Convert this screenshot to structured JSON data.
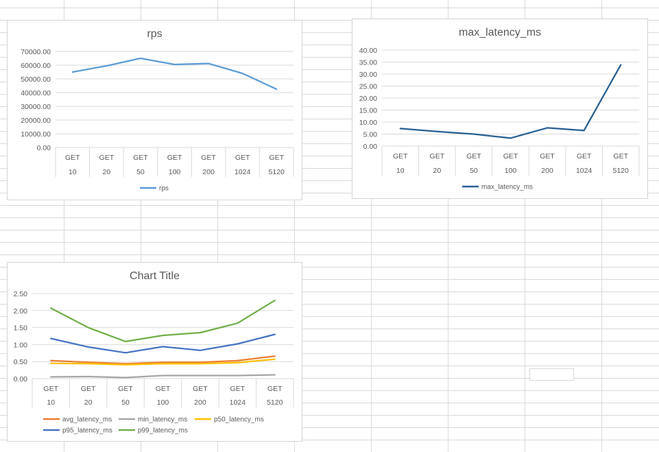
{
  "chart_data": [
    {
      "type": "line",
      "title": "rps",
      "categories": [
        [
          "GET",
          "10"
        ],
        [
          "GET",
          "20"
        ],
        [
          "GET",
          "50"
        ],
        [
          "GET",
          "100"
        ],
        [
          "GET",
          "200"
        ],
        [
          "GET",
          "1024"
        ],
        [
          "GET",
          "5120"
        ]
      ],
      "series": [
        {
          "name": "rps",
          "color": "#5b9bd5",
          "values": [
            55000,
            59500,
            65000,
            60500,
            61200,
            54000,
            42500
          ]
        }
      ],
      "ylim": [
        0,
        70000
      ],
      "yticks": [
        0,
        10000,
        20000,
        30000,
        40000,
        50000,
        60000,
        70000
      ],
      "ytick_labels": [
        "0.00",
        "10000.00",
        "20000.00",
        "30000.00",
        "40000.00",
        "50000.00",
        "60000.00",
        "70000.00"
      ],
      "grid": true,
      "legend": "bottom"
    },
    {
      "type": "line",
      "title": "max_latency_ms",
      "categories": [
        [
          "GET",
          "10"
        ],
        [
          "GET",
          "20"
        ],
        [
          "GET",
          "50"
        ],
        [
          "GET",
          "100"
        ],
        [
          "GET",
          "200"
        ],
        [
          "GET",
          "1024"
        ],
        [
          "GET",
          "5120"
        ]
      ],
      "series": [
        {
          "name": "max_latency_ms",
          "color": "#255e91",
          "values": [
            7.3,
            6.1,
            5.0,
            3.3,
            7.6,
            6.5,
            33.8
          ]
        }
      ],
      "ylim": [
        0,
        40
      ],
      "yticks": [
        0,
        5,
        10,
        15,
        20,
        25,
        30,
        35,
        40
      ],
      "ytick_labels": [
        "0.00",
        "5.00",
        "10.00",
        "15.00",
        "20.00",
        "25.00",
        "30.00",
        "35.00",
        "40.00"
      ],
      "grid": true,
      "legend": "bottom"
    },
    {
      "type": "line",
      "title": "Chart Title",
      "categories": [
        [
          "GET",
          "10"
        ],
        [
          "GET",
          "20"
        ],
        [
          "GET",
          "50"
        ],
        [
          "GET",
          "100"
        ],
        [
          "GET",
          "200"
        ],
        [
          "GET",
          "1024"
        ],
        [
          "GET",
          "5120"
        ]
      ],
      "series": [
        {
          "name": "avg_latency_ms",
          "color": "#ed7d31",
          "values": [
            0.53,
            0.48,
            0.44,
            0.48,
            0.48,
            0.53,
            0.66
          ]
        },
        {
          "name": "min_latency_ms",
          "color": "#a5a5a5",
          "values": [
            0.05,
            0.06,
            0.03,
            0.09,
            0.09,
            0.09,
            0.11
          ]
        },
        {
          "name": "p50_latency_ms",
          "color": "#ffc000",
          "values": [
            0.45,
            0.44,
            0.41,
            0.44,
            0.44,
            0.47,
            0.57
          ]
        },
        {
          "name": "p95_latency_ms",
          "color": "#4472c4",
          "values": [
            1.18,
            0.93,
            0.76,
            0.94,
            0.83,
            1.02,
            1.3
          ]
        },
        {
          "name": "p99_latency_ms",
          "color": "#70ad47",
          "values": [
            2.07,
            1.5,
            1.09,
            1.27,
            1.35,
            1.63,
            2.3
          ]
        }
      ],
      "ylim": [
        0,
        2.5
      ],
      "yticks": [
        0,
        0.5,
        1.0,
        1.5,
        2.0,
        2.5
      ],
      "ytick_labels": [
        "0.00",
        "0.50",
        "1.00",
        "1.50",
        "2.00",
        "2.50"
      ],
      "grid": true,
      "legend": "bottom"
    }
  ]
}
